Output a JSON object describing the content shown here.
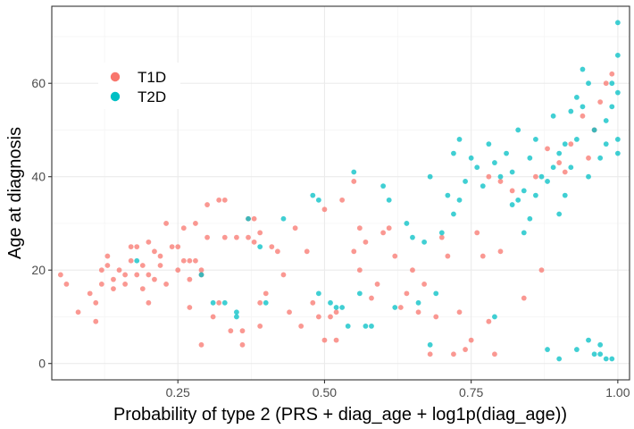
{
  "chart_data": {
    "type": "scatter",
    "title": "",
    "xlabel": "Probability of type 2 (PRS + diag_age + log1p(diag_age))",
    "ylabel": "Age at diagnosis",
    "xlim": [
      0.035,
      1.02
    ],
    "ylim": [
      -3.5,
      76.5
    ],
    "xticks": [
      0.25,
      0.5,
      0.75,
      1.0
    ],
    "xtick_labels": [
      "0.25",
      "0.50",
      "0.75",
      "1.00"
    ],
    "yticks": [
      0,
      20,
      40,
      60
    ],
    "ytick_labels": [
      "0",
      "20",
      "40",
      "60"
    ],
    "grid": true,
    "legend_position": "top-left",
    "series": [
      {
        "name": "T1D",
        "color": "#F8766D",
        "points": [
          [
            0.05,
            19
          ],
          [
            0.06,
            17
          ],
          [
            0.08,
            11
          ],
          [
            0.1,
            15
          ],
          [
            0.11,
            13
          ],
          [
            0.11,
            9
          ],
          [
            0.12,
            20
          ],
          [
            0.12,
            17
          ],
          [
            0.13,
            23
          ],
          [
            0.13,
            21
          ],
          [
            0.14,
            18
          ],
          [
            0.14,
            16
          ],
          [
            0.15,
            20
          ],
          [
            0.16,
            19
          ],
          [
            0.16,
            17
          ],
          [
            0.17,
            25
          ],
          [
            0.17,
            22
          ],
          [
            0.18,
            25
          ],
          [
            0.18,
            19
          ],
          [
            0.19,
            21
          ],
          [
            0.19,
            16
          ],
          [
            0.2,
            26
          ],
          [
            0.2,
            19
          ],
          [
            0.2,
            13
          ],
          [
            0.21,
            24
          ],
          [
            0.21,
            18
          ],
          [
            0.22,
            23
          ],
          [
            0.22,
            21
          ],
          [
            0.23,
            30
          ],
          [
            0.23,
            17
          ],
          [
            0.24,
            25
          ],
          [
            0.25,
            25
          ],
          [
            0.25,
            20
          ],
          [
            0.26,
            29
          ],
          [
            0.26,
            22
          ],
          [
            0.27,
            22
          ],
          [
            0.27,
            18
          ],
          [
            0.27,
            12
          ],
          [
            0.28,
            30
          ],
          [
            0.28,
            22
          ],
          [
            0.29,
            20
          ],
          [
            0.29,
            19
          ],
          [
            0.29,
            4
          ],
          [
            0.3,
            34
          ],
          [
            0.3,
            27
          ],
          [
            0.31,
            10
          ],
          [
            0.32,
            35
          ],
          [
            0.32,
            13
          ],
          [
            0.33,
            35
          ],
          [
            0.33,
            27
          ],
          [
            0.34,
            7
          ],
          [
            0.35,
            27
          ],
          [
            0.36,
            7
          ],
          [
            0.36,
            4
          ],
          [
            0.37,
            31
          ],
          [
            0.37,
            27
          ],
          [
            0.38,
            31
          ],
          [
            0.38,
            26
          ],
          [
            0.39,
            28
          ],
          [
            0.39,
            13
          ],
          [
            0.39,
            8
          ],
          [
            0.4,
            15
          ],
          [
            0.41,
            25
          ],
          [
            0.42,
            24
          ],
          [
            0.43,
            19
          ],
          [
            0.44,
            11
          ],
          [
            0.45,
            29
          ],
          [
            0.46,
            8
          ],
          [
            0.47,
            24
          ],
          [
            0.48,
            13
          ],
          [
            0.49,
            10
          ],
          [
            0.5,
            5
          ],
          [
            0.5,
            33
          ],
          [
            0.51,
            10
          ],
          [
            0.52,
            11
          ],
          [
            0.52,
            5
          ],
          [
            0.53,
            35
          ],
          [
            0.55,
            39
          ],
          [
            0.55,
            24
          ],
          [
            0.56,
            29
          ],
          [
            0.56,
            20
          ],
          [
            0.57,
            26
          ],
          [
            0.58,
            14
          ],
          [
            0.59,
            17
          ],
          [
            0.6,
            28
          ],
          [
            0.61,
            29
          ],
          [
            0.62,
            23
          ],
          [
            0.63,
            12
          ],
          [
            0.64,
            15
          ],
          [
            0.65,
            20
          ],
          [
            0.66,
            11
          ],
          [
            0.67,
            17
          ],
          [
            0.68,
            2
          ],
          [
            0.69,
            10
          ],
          [
            0.7,
            27
          ],
          [
            0.71,
            23
          ],
          [
            0.72,
            2
          ],
          [
            0.73,
            11
          ],
          [
            0.74,
            3
          ],
          [
            0.75,
            5
          ],
          [
            0.76,
            28
          ],
          [
            0.77,
            23
          ],
          [
            0.78,
            9
          ],
          [
            0.79,
            2
          ],
          [
            0.8,
            24
          ],
          [
            0.82,
            37
          ],
          [
            0.84,
            14
          ],
          [
            0.86,
            40
          ],
          [
            0.87,
            20
          ],
          [
            0.88,
            46
          ],
          [
            0.9,
            43
          ],
          [
            0.91,
            41
          ],
          [
            0.92,
            47
          ],
          [
            0.94,
            53
          ],
          [
            0.95,
            44
          ],
          [
            0.96,
            50
          ],
          [
            0.97,
            56
          ],
          [
            0.98,
            60
          ],
          [
            0.99,
            62
          ],
          [
            0.8,
            39
          ],
          [
            0.78,
            40
          ]
        ]
      },
      {
        "name": "T2D",
        "color": "#00BFC4",
        "points": [
          [
            0.18,
            22
          ],
          [
            0.29,
            19
          ],
          [
            0.31,
            13
          ],
          [
            0.33,
            13
          ],
          [
            0.35,
            10
          ],
          [
            0.35,
            11
          ],
          [
            0.37,
            31
          ],
          [
            0.39,
            25
          ],
          [
            0.4,
            13
          ],
          [
            0.43,
            31
          ],
          [
            0.48,
            36
          ],
          [
            0.49,
            35
          ],
          [
            0.49,
            15
          ],
          [
            0.51,
            13
          ],
          [
            0.52,
            12
          ],
          [
            0.53,
            12
          ],
          [
            0.54,
            8
          ],
          [
            0.55,
            41
          ],
          [
            0.56,
            15
          ],
          [
            0.57,
            8
          ],
          [
            0.58,
            8
          ],
          [
            0.6,
            38
          ],
          [
            0.61,
            35
          ],
          [
            0.62,
            12
          ],
          [
            0.64,
            30
          ],
          [
            0.65,
            27
          ],
          [
            0.66,
            13
          ],
          [
            0.67,
            26
          ],
          [
            0.68,
            40
          ],
          [
            0.68,
            4
          ],
          [
            0.69,
            15
          ],
          [
            0.7,
            28
          ],
          [
            0.71,
            36
          ],
          [
            0.72,
            32
          ],
          [
            0.72,
            45
          ],
          [
            0.73,
            48
          ],
          [
            0.73,
            35
          ],
          [
            0.74,
            39
          ],
          [
            0.75,
            44
          ],
          [
            0.76,
            42
          ],
          [
            0.77,
            38
          ],
          [
            0.78,
            47
          ],
          [
            0.79,
            43
          ],
          [
            0.79,
            10
          ],
          [
            0.8,
            40
          ],
          [
            0.81,
            45
          ],
          [
            0.82,
            41
          ],
          [
            0.83,
            50
          ],
          [
            0.84,
            37
          ],
          [
            0.85,
            44
          ],
          [
            0.86,
            48
          ],
          [
            0.87,
            40
          ],
          [
            0.88,
            3
          ],
          [
            0.89,
            53
          ],
          [
            0.9,
            32
          ],
          [
            0.9,
            1
          ],
          [
            0.91,
            36
          ],
          [
            0.92,
            42
          ],
          [
            0.93,
            48
          ],
          [
            0.93,
            3
          ],
          [
            0.94,
            55
          ],
          [
            0.95,
            5
          ],
          [
            0.95,
            40
          ],
          [
            0.96,
            2
          ],
          [
            0.97,
            2
          ],
          [
            0.97,
            4
          ],
          [
            0.98,
            1
          ],
          [
            0.98,
            52
          ],
          [
            0.99,
            60
          ],
          [
            0.99,
            1
          ],
          [
            1.0,
            73
          ],
          [
            1.0,
            66
          ],
          [
            1.0,
            58
          ],
          [
            1.0,
            48
          ],
          [
            1.0,
            45
          ],
          [
            0.99,
            55
          ],
          [
            0.98,
            47
          ],
          [
            0.97,
            44
          ],
          [
            0.96,
            50
          ],
          [
            0.95,
            60
          ],
          [
            0.94,
            63
          ],
          [
            0.93,
            57
          ],
          [
            0.92,
            54
          ],
          [
            0.91,
            47
          ],
          [
            0.9,
            45
          ],
          [
            0.89,
            42
          ],
          [
            0.88,
            39
          ],
          [
            0.86,
            36
          ],
          [
            0.85,
            31
          ],
          [
            0.84,
            28
          ],
          [
            0.83,
            35
          ],
          [
            0.82,
            34
          ]
        ]
      }
    ]
  }
}
